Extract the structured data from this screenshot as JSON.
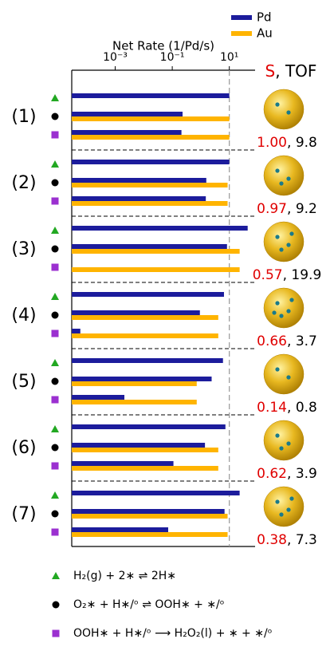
{
  "chart_data": {
    "type": "bar",
    "orientation": "horizontal",
    "xlabel": "Net Rate (1/Pd/s)",
    "xscale": "log",
    "xlim": [
      3e-05,
      80
    ],
    "xticks": [
      {
        "value": 0.001,
        "label": "10⁻³"
      },
      {
        "value": 0.1,
        "label": "10⁻¹"
      },
      {
        "value": 10,
        "label": "10¹"
      }
    ],
    "reference_line": 10,
    "legend_position": "upper right",
    "series": [
      {
        "name": "Pd",
        "color": "#1c1c9c",
        "values": [
          10,
          0.23,
          0.21,
          10,
          1.56,
          1.5,
          44,
          8.3,
          null,
          6.5,
          0.93,
          6e-05,
          6,
          2.4,
          0.0021,
          7.3,
          1.4,
          0.11,
          23,
          6.8,
          0.072
        ]
      },
      {
        "name": "Au",
        "color": "#ffb400",
        "values": [
          null,
          10,
          10,
          null,
          8.7,
          8.7,
          null,
          23,
          23,
          null,
          4.1,
          4.1,
          null,
          0.72,
          0.72,
          null,
          4.1,
          4.1,
          null,
          8.7,
          8.7
        ]
      }
    ],
    "groups": [
      {
        "label": "(1)",
        "S": {
          "value": 1,
          "label": "1.00"
        },
        "TOF": 9.8
      },
      {
        "label": "(2)",
        "S": 0.97,
        "TOF": 9.2
      },
      {
        "label": "(3)",
        "S": 0.57,
        "TOF": 19.9
      },
      {
        "label": "(4)",
        "S": 0.66,
        "TOF": 3.7
      },
      {
        "label": "(5)",
        "S": 0.14,
        "TOF": 0.8
      },
      {
        "label": "(6)",
        "S": 0.62,
        "TOF": 3.9
      },
      {
        "label": "(7)",
        "S": 0.38,
        "TOF": 7.3
      }
    ],
    "stat_header": {
      "S": "S",
      "TOF": "TOF"
    },
    "separator": ", ",
    "reactions": [
      {
        "marker": "triangle",
        "color": "#22a822",
        "equation": "H₂(g) + 2∗ ⇌ 2H∗"
      },
      {
        "marker": "circle",
        "color": "#000000",
        "equation": "O₂∗ + H∗/ᵒ ⇌ OOH∗ + ∗/ᵒ"
      },
      {
        "marker": "square",
        "color": "#9b30d0",
        "equation": "OOH∗ + H∗/ᵒ ⟶ H₂O₂(l) + ∗ + ∗/ᵒ"
      }
    ]
  }
}
